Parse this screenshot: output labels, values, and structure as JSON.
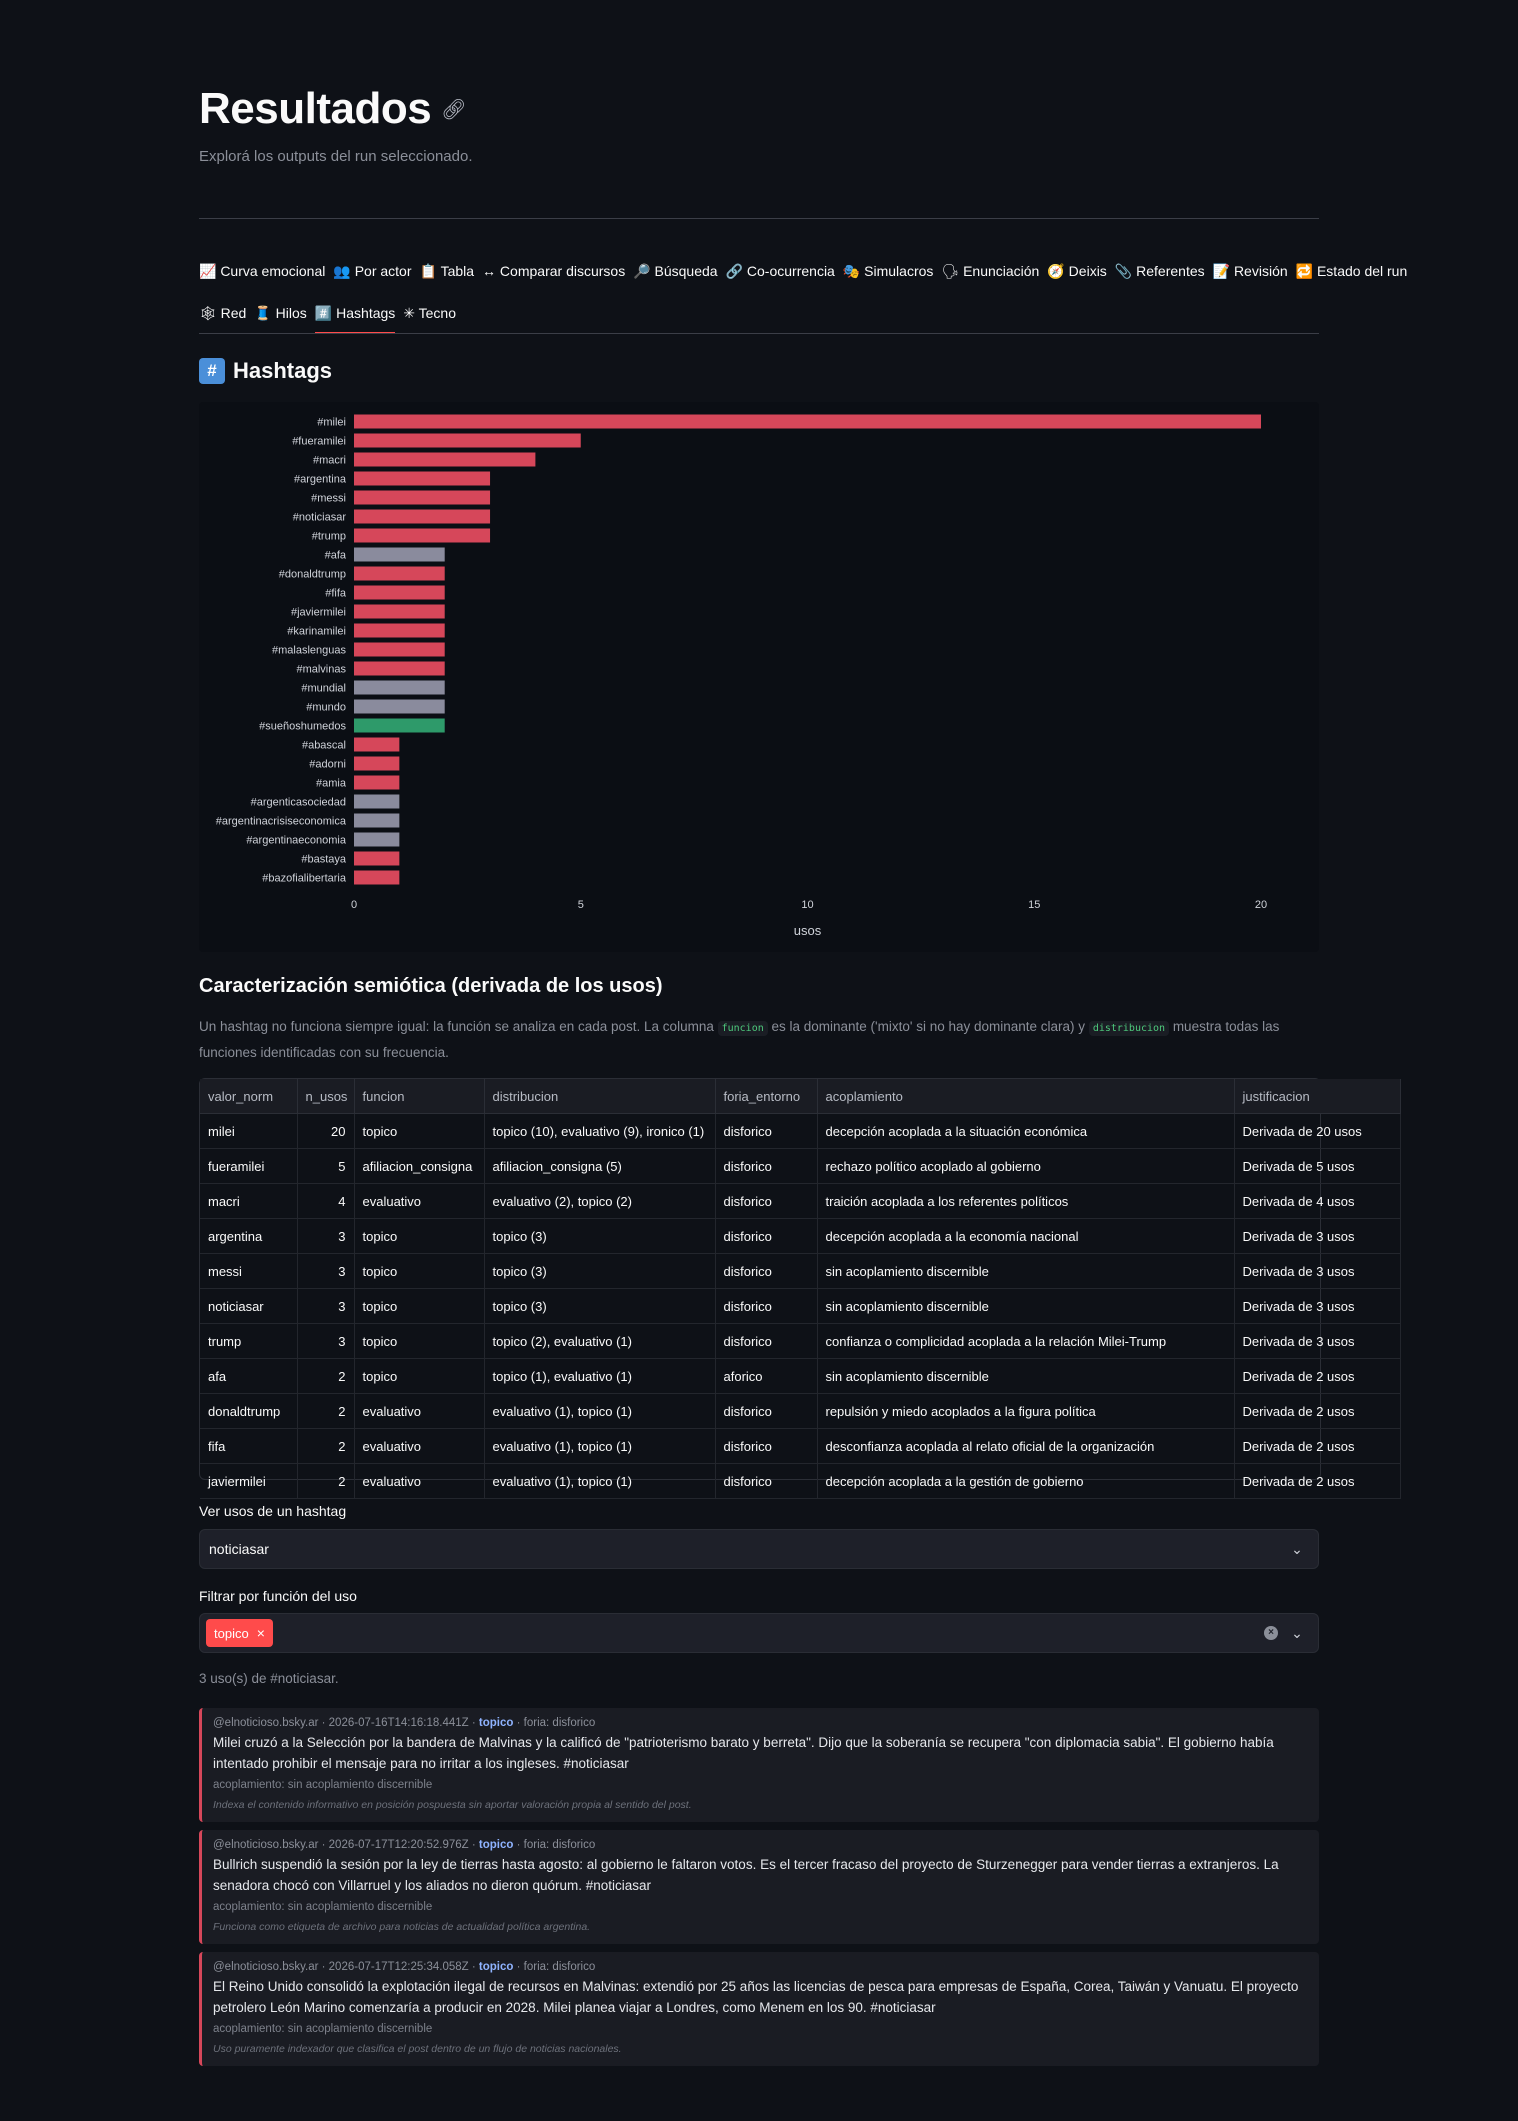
{
  "page": {
    "title": "Resultados",
    "subtitle": "Explorá los outputs del run seleccionado."
  },
  "tabs": [
    {
      "label": "📈 Curva emocional",
      "name": "tab-curva-emocional"
    },
    {
      "label": "👥 Por actor",
      "name": "tab-por-actor"
    },
    {
      "label": "📋 Tabla",
      "name": "tab-tabla"
    },
    {
      "label": "↔ Comparar discursos",
      "name": "tab-comparar-discursos"
    },
    {
      "label": "🔎 Búsqueda",
      "name": "tab-busqueda"
    },
    {
      "label": "🔗 Co-ocurrencia",
      "name": "tab-co-ocurrencia"
    },
    {
      "label": "🎭 Simulacros",
      "name": "tab-simulacros"
    },
    {
      "label": "🗣 Enunciación",
      "name": "tab-enunciacion"
    },
    {
      "label": "🧭 Deixis",
      "name": "tab-deixis"
    },
    {
      "label": "📎 Referentes",
      "name": "tab-referentes"
    },
    {
      "label": "📝 Revisión",
      "name": "tab-revision"
    },
    {
      "label": "🔁 Estado del run",
      "name": "tab-estado-del-run"
    },
    {
      "label": "🕸 Red",
      "name": "tab-red"
    },
    {
      "label": "🧵 Hilos",
      "name": "tab-hilos"
    },
    {
      "label": "#️⃣ Hashtags",
      "name": "tab-hashtags",
      "active": true
    },
    {
      "label": "✳ Tecno",
      "name": "tab-tecno"
    }
  ],
  "hashtags_section": {
    "badge": "#",
    "title": "Hashtags"
  },
  "chart_data": {
    "type": "bar",
    "orientation": "horizontal",
    "categories": [
      "#milei",
      "#fueramilei",
      "#macri",
      "#argentina",
      "#messi",
      "#noticiasar",
      "#trump",
      "#afa",
      "#donaldtrump",
      "#fifa",
      "#javiermilei",
      "#karinamilei",
      "#malaslenguas",
      "#malvinas",
      "#mundial",
      "#mundo",
      "#sueñoshumedos",
      "#abascal",
      "#adorni",
      "#amia",
      "#argenticasociedad",
      "#argentinacrisiseconomica",
      "#argentinaeconomia",
      "#bastaya",
      "#bazofialibertaria"
    ],
    "values": [
      20,
      5,
      4,
      3,
      3,
      3,
      3,
      2,
      2,
      2,
      2,
      2,
      2,
      2,
      2,
      2,
      2,
      1,
      1,
      1,
      1,
      1,
      1,
      1,
      1
    ],
    "bar_colors": [
      "#d6475a",
      "#d6475a",
      "#d6475a",
      "#d6475a",
      "#d6475a",
      "#d6475a",
      "#d6475a",
      "#8a8b9d",
      "#d6475a",
      "#d6475a",
      "#d6475a",
      "#d6475a",
      "#d6475a",
      "#d6475a",
      "#8a8b9d",
      "#8a8b9d",
      "#2e9a6a",
      "#d6475a",
      "#d6475a",
      "#d6475a",
      "#8a8b9d",
      "#8a8b9d",
      "#8a8b9d",
      "#d6475a",
      "#d6475a"
    ],
    "xlabel": "usos",
    "xlim": [
      0,
      20
    ],
    "xticks": [
      0,
      5,
      10,
      15,
      20
    ],
    "grid": false
  },
  "semiotica": {
    "title": "Caracterización semiótica (derivada de los usos)",
    "desc_1": "Un hashtag no funciona siempre igual: la función se analiza en cada post. La columna ",
    "code_1": "funcion",
    "desc_2": " es la dominante ('mixto' si no hay dominante clara) y ",
    "code_2": "distribucion",
    "desc_3": " muestra todas las funciones identificadas con su frecuencia."
  },
  "table": {
    "columns": [
      "valor_norm",
      "n_usos",
      "funcion",
      "distribucion",
      "foria_entorno",
      "acoplamiento",
      "justificacion"
    ],
    "rows": [
      [
        "milei",
        "20",
        "topico",
        "topico (10), evaluativo (9), ironico (1)",
        "disforico",
        "decepción acoplada a la situación económica",
        "Derivada de 20 usos"
      ],
      [
        "fueramilei",
        "5",
        "afiliacion_consigna",
        "afiliacion_consigna (5)",
        "disforico",
        "rechazo político acoplado al gobierno",
        "Derivada de 5 usos"
      ],
      [
        "macri",
        "4",
        "evaluativo",
        "evaluativo (2), topico (2)",
        "disforico",
        "traición acoplada a los referentes políticos",
        "Derivada de 4 usos"
      ],
      [
        "argentina",
        "3",
        "topico",
        "topico (3)",
        "disforico",
        "decepción acoplada a la economía nacional",
        "Derivada de 3 usos"
      ],
      [
        "messi",
        "3",
        "topico",
        "topico (3)",
        "disforico",
        "sin acoplamiento discernible",
        "Derivada de 3 usos"
      ],
      [
        "noticiasar",
        "3",
        "topico",
        "topico (3)",
        "disforico",
        "sin acoplamiento discernible",
        "Derivada de 3 usos"
      ],
      [
        "trump",
        "3",
        "topico",
        "topico (2), evaluativo (1)",
        "disforico",
        "confianza o complicidad acoplada a la relación Milei-Trump",
        "Derivada de 3 usos"
      ],
      [
        "afa",
        "2",
        "topico",
        "topico (1), evaluativo (1)",
        "aforico",
        "sin acoplamiento discernible",
        "Derivada de 2 usos"
      ],
      [
        "donaldtrump",
        "2",
        "evaluativo",
        "evaluativo (1), topico (1)",
        "disforico",
        "repulsión y miedo acoplados a la figura política",
        "Derivada de 2 usos"
      ],
      [
        "fifa",
        "2",
        "evaluativo",
        "evaluativo (1), topico (1)",
        "disforico",
        "desconfianza acoplada al relato oficial de la organización",
        "Derivada de 2 usos"
      ],
      [
        "javiermilei",
        "2",
        "evaluativo",
        "evaluativo (1), topico (1)",
        "disforico",
        "decepción acoplada a la gestión de gobierno",
        "Derivada de 2 usos"
      ]
    ]
  },
  "hashtag_select": {
    "label": "Ver usos de un hashtag",
    "value": "noticiasar"
  },
  "funcion_filter": {
    "label": "Filtrar por función del uso",
    "selected": "topico"
  },
  "count_text": "3 uso(s) de #noticiasar.",
  "posts": [
    {
      "author": "@elnoticioso.bsky.ar",
      "timestamp": "2026-07-16T14:16:18.441Z",
      "funcion": "topico",
      "foria": "foria: disforico",
      "text": "Milei cruzó a la Selección por la bandera de Malvinas y la calificó de \"patrioterismo barato y berreta\". Dijo que la soberanía se recupera \"con diplomacia sabia\". El gobierno había intentado prohibir el mensaje para no irritar a los ingleses. #noticiasar",
      "acoplamiento": "acoplamiento: sin acoplamiento discernible",
      "justificacion": "Indexa el contenido informativo en posición pospuesta sin aportar valoración propia al sentido del post."
    },
    {
      "author": "@elnoticioso.bsky.ar",
      "timestamp": "2026-07-17T12:20:52.976Z",
      "funcion": "topico",
      "foria": "foria: disforico",
      "text": "Bullrich suspendió la sesión por la ley de tierras hasta agosto: al gobierno le faltaron votos. Es el tercer fracaso del proyecto de Sturzenegger para vender tierras a extranjeros. La senadora chocó con Villarruel y los aliados no dieron quórum. #noticiasar",
      "acoplamiento": "acoplamiento: sin acoplamiento discernible",
      "justificacion": "Funciona como etiqueta de archivo para noticias de actualidad política argentina."
    },
    {
      "author": "@elnoticioso.bsky.ar",
      "timestamp": "2026-07-17T12:25:34.058Z",
      "funcion": "topico",
      "foria": "foria: disforico",
      "text": "El Reino Unido consolidó la explotación ilegal de recursos en Malvinas: extendió por 25 años las licencias de pesca para empresas de España, Corea, Taiwán y Vanuatu. El proyecto petrolero León Marino comenzaría a producir en 2028. Milei planea viajar a Londres, como Menem en los 90. #noticiasar",
      "acoplamiento": "acoplamiento: sin acoplamiento discernible",
      "justificacion": "Uso puramente indexador que clasifica el post dentro de un flujo de noticias nacionales."
    }
  ]
}
